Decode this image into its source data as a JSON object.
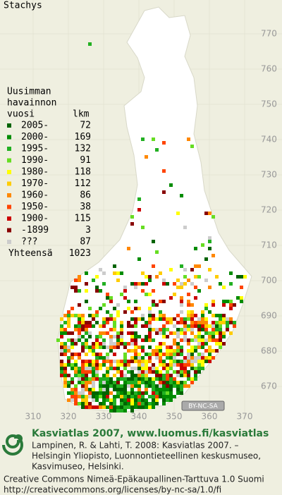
{
  "title": "Stachys",
  "legend": {
    "heading": [
      "Uusimman",
      "havainnon",
      "vuosi"
    ],
    "count_heading": "lkm",
    "entries": [
      {
        "label": "2005-",
        "count": "72",
        "color": "#006400"
      },
      {
        "label": "2000-",
        "count": "169",
        "color": "#008c00"
      },
      {
        "label": "1995-",
        "count": "132",
        "color": "#22b022"
      },
      {
        "label": "1990-",
        "count": "91",
        "color": "#66dd22"
      },
      {
        "label": "1980-",
        "count": "118",
        "color": "#ffff00"
      },
      {
        "label": "1970-",
        "count": "112",
        "color": "#ffcc00"
      },
      {
        "label": "1960-",
        "count": "86",
        "color": "#ff8800"
      },
      {
        "label": "1950-",
        "count": "38",
        "color": "#ff4400"
      },
      {
        "label": "1900-",
        "count": "115",
        "color": "#cc0000"
      },
      {
        "label": "-1899",
        "count": "3",
        "color": "#880000"
      },
      {
        "label": "???",
        "count": "87",
        "color": "#cccccc"
      }
    ],
    "total_label": "Yhteensä",
    "total": "1023"
  },
  "grid": {
    "northing_ticks": [
      770,
      760,
      750,
      740,
      730,
      720,
      710,
      700,
      690,
      680,
      670
    ],
    "easting_ticks": [
      310,
      320,
      330,
      340,
      350,
      360,
      370
    ]
  },
  "license_badge": "BY-NC-SA",
  "footer": {
    "title": "Kasviatlas 2007, www.luomus.fi/kasviatlas",
    "citation": [
      "Lampinen, R. & Lahti, T. 2008: Kasviatlas 2007. –",
      "Helsingin Yliopisto, Luonnontieteellinen keskusmuseo,",
      "Kasvimuseo, Helsinki."
    ],
    "license": "Creative Commons Nimeä-Epäkaupallinen-Tarttuva 1.0 Suomi",
    "license_url": "http://creativecommons.org/licenses/by-nc-sa/1.0/fi"
  }
}
